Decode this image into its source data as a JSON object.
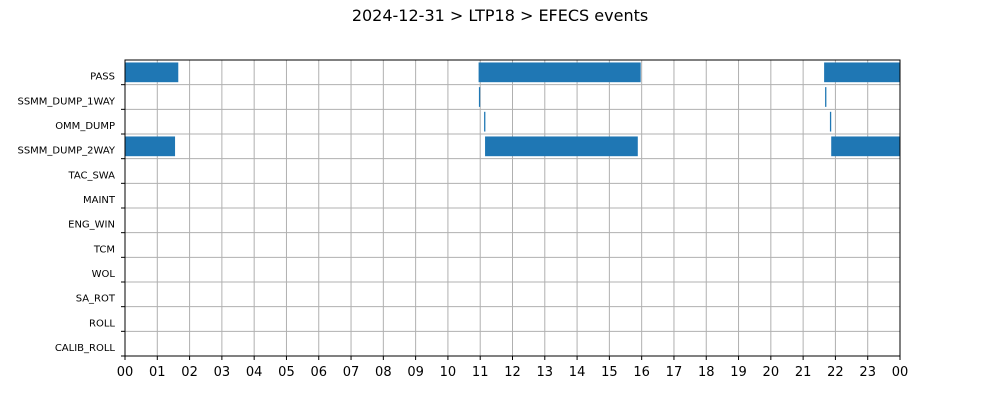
{
  "chart_data": {
    "type": "bar",
    "title": "2024-12-31 > LTP18 > EFECS events",
    "xlabel": "",
    "ylabel": "",
    "xlim": [
      0,
      24
    ],
    "x_tick_labels": [
      "00",
      "01",
      "02",
      "03",
      "04",
      "05",
      "06",
      "07",
      "08",
      "09",
      "10",
      "11",
      "12",
      "13",
      "14",
      "15",
      "16",
      "17",
      "18",
      "19",
      "20",
      "21",
      "22",
      "23",
      "00"
    ],
    "grid": true,
    "bar_color": "#1f77b4",
    "categories": [
      "PASS",
      "SSMM_DUMP_1WAY",
      "OMM_DUMP",
      "SSMM_DUMP_2WAY",
      "TAC_SWA",
      "MAINT",
      "ENG_WIN",
      "TCM",
      "WOL",
      "SA_ROT",
      "ROLL",
      "CALIB_ROLL"
    ],
    "events": [
      {
        "category": "PASS",
        "start": 0.0,
        "end": 1.65
      },
      {
        "category": "PASS",
        "start": 10.95,
        "end": 15.97
      },
      {
        "category": "PASS",
        "start": 21.65,
        "end": 24.0
      },
      {
        "category": "SSMM_DUMP_1WAY",
        "start": 10.96,
        "end": 11.0
      },
      {
        "category": "SSMM_DUMP_1WAY",
        "start": 21.68,
        "end": 21.72
      },
      {
        "category": "OMM_DUMP",
        "start": 11.12,
        "end": 11.16
      },
      {
        "category": "OMM_DUMP",
        "start": 21.83,
        "end": 21.87
      },
      {
        "category": "SSMM_DUMP_2WAY",
        "start": 0.0,
        "end": 1.55
      },
      {
        "category": "SSMM_DUMP_2WAY",
        "start": 11.15,
        "end": 15.88
      },
      {
        "category": "SSMM_DUMP_2WAY",
        "start": 21.87,
        "end": 24.0
      }
    ]
  }
}
